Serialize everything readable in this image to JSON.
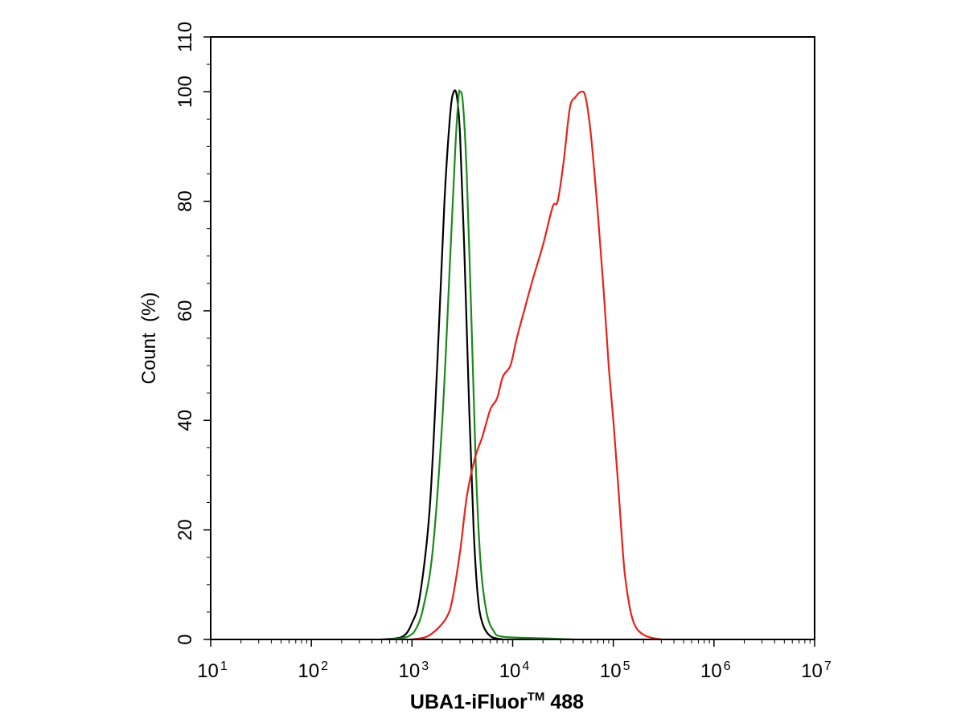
{
  "chart_data": {
    "type": "line",
    "title": "",
    "xlabel": {
      "main": "UBA1-iFluor",
      "superscript": "TM",
      "suffix": " 488"
    },
    "ylabel": "Count  (%)",
    "x_scale": "log",
    "xlim": [
      10,
      10000000
    ],
    "ylim": [
      0,
      110
    ],
    "x_ticks": [
      {
        "value": 10,
        "base": "10",
        "exp": "1"
      },
      {
        "value": 100,
        "base": "10",
        "exp": "2"
      },
      {
        "value": 1000,
        "base": "10",
        "exp": "3"
      },
      {
        "value": 10000,
        "base": "10",
        "exp": "4"
      },
      {
        "value": 100000,
        "base": "10",
        "exp": "5"
      },
      {
        "value": 1000000,
        "base": "10",
        "exp": "6"
      },
      {
        "value": 10000000,
        "base": "10",
        "exp": "7"
      }
    ],
    "y_ticks": [
      "0",
      "20",
      "40",
      "60",
      "80",
      "100",
      "110"
    ],
    "grid": false,
    "legend": "none",
    "series": [
      {
        "color": "#000000",
        "points": [
          [
            500,
            0
          ],
          [
            800,
            0.5
          ],
          [
            1000,
            3
          ],
          [
            1200,
            8
          ],
          [
            1500,
            24
          ],
          [
            1800,
            52
          ],
          [
            2100,
            80
          ],
          [
            2400,
            96
          ],
          [
            2600,
            100
          ],
          [
            2800,
            99
          ],
          [
            3000,
            92
          ],
          [
            3300,
            72
          ],
          [
            3700,
            42
          ],
          [
            4100,
            20
          ],
          [
            4500,
            8
          ],
          [
            5000,
            3
          ],
          [
            6000,
            0.6
          ],
          [
            8000,
            0
          ]
        ]
      },
      {
        "color": "#1a8a1a",
        "points": [
          [
            600,
            0
          ],
          [
            900,
            0.5
          ],
          [
            1100,
            2
          ],
          [
            1300,
            6
          ],
          [
            1600,
            16
          ],
          [
            2000,
            40
          ],
          [
            2400,
            70
          ],
          [
            2700,
            90
          ],
          [
            2900,
            99
          ],
          [
            3000,
            100
          ],
          [
            3200,
            98
          ],
          [
            3500,
            85
          ],
          [
            3900,
            58
          ],
          [
            4300,
            32
          ],
          [
            4800,
            14
          ],
          [
            5500,
            5
          ],
          [
            6500,
            1.5
          ],
          [
            8000,
            0.5
          ],
          [
            20000,
            0.2
          ],
          [
            40000,
            0
          ]
        ]
      },
      {
        "color": "#e8211c",
        "points": [
          [
            1000,
            0
          ],
          [
            1400,
            0.5
          ],
          [
            1800,
            2
          ],
          [
            2200,
            4
          ],
          [
            2500,
            7
          ],
          [
            3000,
            16
          ],
          [
            3500,
            26
          ],
          [
            4200,
            33
          ],
          [
            5000,
            37
          ],
          [
            6000,
            42
          ],
          [
            7000,
            44
          ],
          [
            8000,
            48
          ],
          [
            9500,
            50
          ],
          [
            11000,
            55
          ],
          [
            13000,
            60
          ],
          [
            16000,
            66
          ],
          [
            20000,
            72
          ],
          [
            25000,
            79
          ],
          [
            28000,
            80
          ],
          [
            32000,
            87
          ],
          [
            37000,
            97
          ],
          [
            42000,
            99
          ],
          [
            48000,
            100
          ],
          [
            53000,
            99
          ],
          [
            60000,
            92
          ],
          [
            70000,
            78
          ],
          [
            80000,
            64
          ],
          [
            90000,
            50
          ],
          [
            100000,
            40
          ],
          [
            110000,
            30
          ],
          [
            120000,
            20
          ],
          [
            130000,
            12
          ],
          [
            145000,
            6
          ],
          [
            160000,
            3
          ],
          [
            180000,
            1.5
          ],
          [
            220000,
            0.5
          ],
          [
            300000,
            0
          ]
        ]
      }
    ]
  }
}
